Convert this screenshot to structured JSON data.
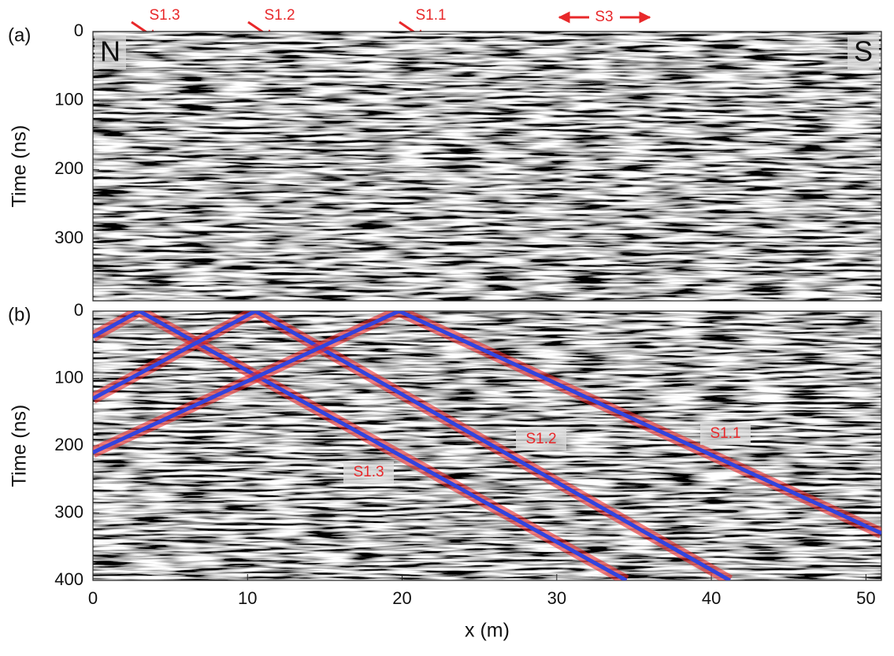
{
  "chart_data": [
    {
      "type": "image",
      "panel": "(a)",
      "ylabel": "Time (ns)",
      "xlim": [
        0,
        51
      ],
      "ylim": [
        0,
        390
      ],
      "yticks": [
        0,
        100,
        200,
        300
      ],
      "annotations": [
        "S1.3",
        "S1.2",
        "S1.1",
        "S3",
        "N",
        "S"
      ]
    },
    {
      "type": "image",
      "panel": "(b)",
      "ylabel": "Time (ns)",
      "xlabel": "x (m)",
      "xlim": [
        0,
        51
      ],
      "ylim": [
        0,
        400
      ],
      "yticks": [
        0,
        100,
        200,
        300,
        400
      ],
      "xticks": [
        0,
        10,
        20,
        30,
        40,
        50
      ],
      "series": [
        {
          "name": "S1.3",
          "color": "#3344dd",
          "x": [
            0,
            3,
            34.5
          ],
          "values": [
            38,
            0,
            400
          ]
        },
        {
          "name": "S1.2",
          "color": "#3344dd",
          "x": [
            0,
            10.5,
            41.2
          ],
          "values": [
            130,
            0,
            400
          ]
        },
        {
          "name": "S1.1",
          "color": "#3344dd",
          "x": [
            0,
            19.8,
            51
          ],
          "values": [
            210,
            0,
            330
          ]
        }
      ]
    }
  ]
}
